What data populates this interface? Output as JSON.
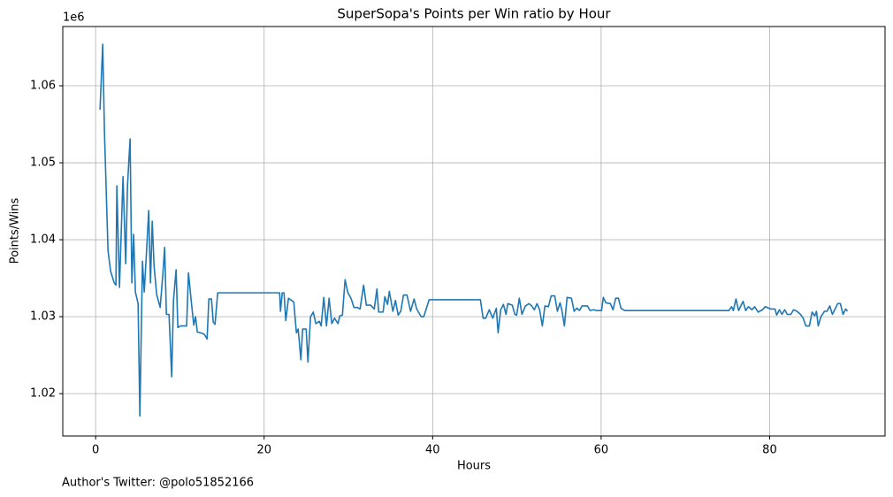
{
  "chart_data": {
    "type": "line",
    "title": "SuperSopa's Points per Win ratio by Hour",
    "xlabel": "Hours",
    "ylabel": "Points/Wins",
    "offset_label": "1e6",
    "footer": "Author's Twitter: @polo51852166",
    "grid": true,
    "xlim": [
      -3.9,
      93.7
    ],
    "xticks": [
      0,
      20,
      40,
      60,
      80
    ],
    "ylim": [
      1.0145,
      1.0677
    ],
    "yticks": [
      1.02,
      1.03,
      1.04,
      1.05,
      1.06
    ],
    "x": [
      0.52,
      0.84,
      1.05,
      1.47,
      1.78,
      2.2,
      2.41,
      2.52,
      2.83,
      3.25,
      3.57,
      3.78,
      4.09,
      4.3,
      4.51,
      4.72,
      5.04,
      5.25,
      5.56,
      5.77,
      5.98,
      6.3,
      6.51,
      6.72,
      6.93,
      7.24,
      7.66,
      7.98,
      8.19,
      8.4,
      8.71,
      9.03,
      9.24,
      9.55,
      9.76,
      10.08,
      10.8,
      11.02,
      11.34,
      11.65,
      11.86,
      12.07,
      12.49,
      12.91,
      13.23,
      13.44,
      13.75,
      13.96,
      14.17,
      14.49,
      21.84,
      21.94,
      22.15,
      22.36,
      22.57,
      22.89,
      23.52,
      23.83,
      24.04,
      24.36,
      24.57,
      24.99,
      25.2,
      25.51,
      25.83,
      26.14,
      26.56,
      26.77,
      27.08,
      27.4,
      27.71,
      28.03,
      28.35,
      28.77,
      28.98,
      29.29,
      29.61,
      29.92,
      30.34,
      30.66,
      31.08,
      31.39,
      31.81,
      32.13,
      32.65,
      33.07,
      33.39,
      33.6,
      34.12,
      34.33,
      34.65,
      34.86,
      35.28,
      35.59,
      35.91,
      36.22,
      36.54,
      36.96,
      37.38,
      37.8,
      38.11,
      38.64,
      38.95,
      39.58,
      45.67,
      45.99,
      46.3,
      46.72,
      47.14,
      47.56,
      47.77,
      48.08,
      48.4,
      48.71,
      48.92,
      49.45,
      49.76,
      49.97,
      50.29,
      50.6,
      51.02,
      51.44,
      51.76,
      52.07,
      52.39,
      52.7,
      53.02,
      53.33,
      53.75,
      54.07,
      54.49,
      54.81,
      55.12,
      55.33,
      55.64,
      55.96,
      56.48,
      56.8,
      57.11,
      57.43,
      57.74,
      58.37,
      58.69,
      59.11,
      59.42,
      60.05,
      60.26,
      60.57,
      61.1,
      61.41,
      61.73,
      62.05,
      62.36,
      62.78,
      75.17,
      75.48,
      75.69,
      76.01,
      76.32,
      76.85,
      77.16,
      77.48,
      77.9,
      78.22,
      78.64,
      79.16,
      79.48,
      80.11,
      80.64,
      80.84,
      81.16,
      81.47,
      81.79,
      82.1,
      82.52,
      82.84,
      83.25,
      83.67,
      83.99,
      84.3,
      84.72,
      85.04,
      85.35,
      85.56,
      85.77,
      86.09,
      86.51,
      86.82,
      87.14,
      87.45,
      87.77,
      88.08,
      88.4,
      88.71,
      89.03,
      89.24
    ],
    "series": [
      {
        "color": "#1f77b4",
        "values": [
          1.0569,
          1.0654,
          1.0539,
          1.0386,
          1.0359,
          1.0344,
          1.0341,
          1.047,
          1.0338,
          1.0482,
          1.0369,
          1.047,
          1.0531,
          1.0344,
          1.0407,
          1.0332,
          1.0317,
          1.0171,
          1.0372,
          1.0332,
          1.0372,
          1.0438,
          1.0344,
          1.0424,
          1.0367,
          1.0329,
          1.0312,
          1.0355,
          1.039,
          1.0303,
          1.0303,
          1.0222,
          1.0321,
          1.0361,
          1.0286,
          1.0288,
          1.0288,
          1.0357,
          1.0321,
          1.0289,
          1.03,
          1.028,
          1.0279,
          1.0277,
          1.0271,
          1.0323,
          1.0323,
          1.0293,
          1.029,
          1.0331,
          1.0331,
          1.0307,
          1.0331,
          1.0331,
          1.0295,
          1.0324,
          1.0319,
          1.0279,
          1.0284,
          1.0244,
          1.0284,
          1.0284,
          1.0241,
          1.03,
          1.0306,
          1.0291,
          1.0294,
          1.0288,
          1.0325,
          1.0288,
          1.0324,
          1.0291,
          1.0298,
          1.0291,
          1.0301,
          1.0302,
          1.0348,
          1.0332,
          1.0323,
          1.0312,
          1.0312,
          1.031,
          1.0341,
          1.0315,
          1.0315,
          1.031,
          1.0336,
          1.0306,
          1.0306,
          1.0326,
          1.0316,
          1.0333,
          1.0307,
          1.0321,
          1.0302,
          1.0307,
          1.0328,
          1.0328,
          1.0307,
          1.0323,
          1.031,
          1.03,
          1.03,
          1.0322,
          1.0322,
          1.0298,
          1.0298,
          1.0309,
          1.0298,
          1.0311,
          1.0279,
          1.0309,
          1.0316,
          1.0303,
          1.0317,
          1.0315,
          1.0303,
          1.0302,
          1.0324,
          1.0303,
          1.0314,
          1.0317,
          1.0314,
          1.0309,
          1.0317,
          1.0309,
          1.0288,
          1.0314,
          1.0313,
          1.0327,
          1.0327,
          1.0307,
          1.0318,
          1.0309,
          1.0288,
          1.0325,
          1.0324,
          1.0307,
          1.0311,
          1.0308,
          1.0314,
          1.0314,
          1.0308,
          1.0309,
          1.0308,
          1.0308,
          1.0325,
          1.0318,
          1.0317,
          1.0309,
          1.0324,
          1.0324,
          1.0311,
          1.0308,
          1.0308,
          1.0313,
          1.0308,
          1.0323,
          1.0308,
          1.032,
          1.0308,
          1.0313,
          1.0309,
          1.0313,
          1.0306,
          1.0309,
          1.0313,
          1.031,
          1.031,
          1.0302,
          1.0309,
          1.0303,
          1.0309,
          1.0303,
          1.0303,
          1.0309,
          1.0307,
          1.0303,
          1.0298,
          1.0288,
          1.0288,
          1.0306,
          1.0301,
          1.0307,
          1.0288,
          1.03,
          1.0307,
          1.0307,
          1.0314,
          1.0303,
          1.031,
          1.0317,
          1.0317,
          1.0303,
          1.031,
          1.0307
        ]
      }
    ]
  }
}
